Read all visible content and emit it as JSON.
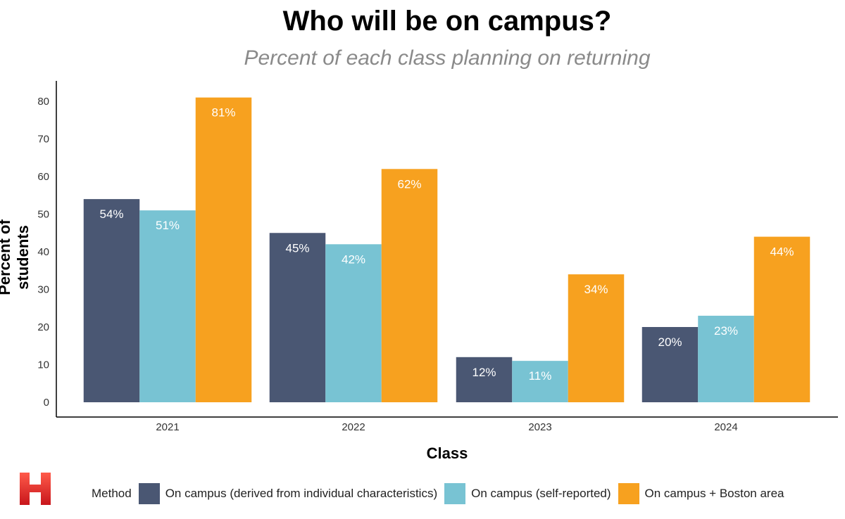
{
  "chart_data": {
    "type": "bar",
    "title": "Who will be on campus?",
    "subtitle": "Percent of each class planning on returning",
    "xlabel": "Class",
    "ylabel": "Percent of students",
    "categories": [
      "2021",
      "2022",
      "2023",
      "2024"
    ],
    "ylim": [
      0,
      85
    ],
    "yticks": [
      0,
      10,
      20,
      30,
      40,
      50,
      60,
      70,
      80
    ],
    "legend_title": "Method",
    "legend_position": "bottom",
    "series": [
      {
        "name": "On campus (derived from individual characteristics)",
        "color": "#4a5773",
        "values": [
          54,
          45,
          12,
          20
        ],
        "labels": [
          "54%",
          "45%",
          "12%",
          "20%"
        ]
      },
      {
        "name": "On campus (self-reported)",
        "color": "#78c3d3",
        "values": [
          51,
          42,
          11,
          23
        ],
        "labels": [
          "51%",
          "42%",
          "11%",
          "23%"
        ]
      },
      {
        "name": "On campus + Boston area",
        "color": "#f7a11f",
        "values": [
          81,
          62,
          34,
          44
        ],
        "labels": [
          "81%",
          "62%",
          "34%",
          "44%"
        ]
      }
    ]
  },
  "logo": {
    "color": "#e8282b",
    "icon": "harvard-h-logo"
  }
}
